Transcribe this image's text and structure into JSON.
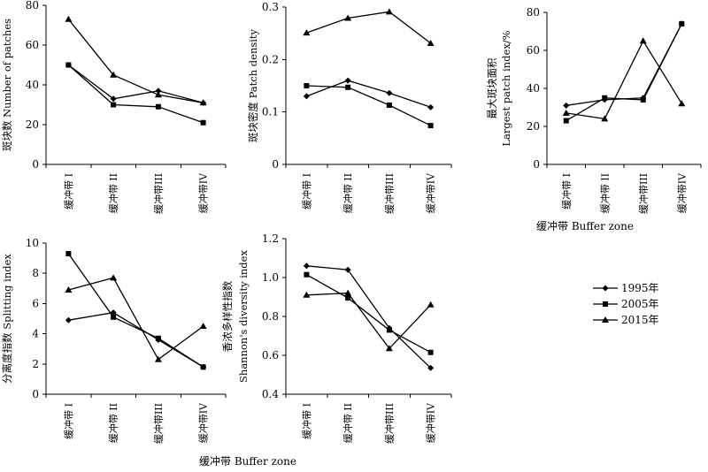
{
  "legend": [
    {
      "label": "1995年",
      "marker": "diamond"
    },
    {
      "label": "2005年",
      "marker": "square"
    },
    {
      "label": "2015年",
      "marker": "triangle"
    }
  ],
  "xlabels": {
    "top": "缓冲带 Buffer zone",
    "bottom": "缓冲带 Buffer zone"
  },
  "chart_data": [
    {
      "type": "line",
      "ylabel_zh": "斑块数",
      "ylabel_en": "Number of patches",
      "categories": [
        "缓冲带 I",
        "缓冲带 II",
        "缓冲带III",
        "缓冲带IV"
      ],
      "ylim": [
        0,
        80
      ],
      "yticks": [
        "0",
        "20",
        "40",
        "60",
        "80"
      ],
      "tickvalues": [
        0,
        20,
        40,
        60,
        80
      ],
      "series": [
        {
          "name": "1995年",
          "values": [
            50,
            33,
            37,
            31
          ]
        },
        {
          "name": "2005年",
          "values": [
            50,
            30,
            29,
            21
          ]
        },
        {
          "name": "2015年",
          "values": [
            73,
            45,
            35,
            31
          ]
        }
      ]
    },
    {
      "type": "line",
      "ylabel_zh": "斑块密度",
      "ylabel_en": "Patch density",
      "categories": [
        "缓冲带 I",
        "缓冲带 II",
        "缓冲带III",
        "缓冲带IV"
      ],
      "ylim": [
        0,
        0.3
      ],
      "yticks": [
        "0",
        "0.1",
        "0.2",
        "0.3"
      ],
      "tickvalues": [
        0,
        0.1,
        0.2,
        0.3
      ],
      "series": [
        {
          "name": "1995年",
          "values": [
            0.13,
            0.16,
            0.136,
            0.109
          ]
        },
        {
          "name": "2005年",
          "values": [
            0.15,
            0.147,
            0.113,
            0.074
          ]
        },
        {
          "name": "2015年",
          "values": [
            0.251,
            0.279,
            0.291,
            0.231
          ]
        }
      ]
    },
    {
      "type": "line",
      "ylabel_zh": "最大斑块面积",
      "ylabel_en": "Largest patch index/%",
      "categories": [
        "缓冲带 I",
        "缓冲带 II",
        "缓冲带III",
        "缓冲带IV"
      ],
      "ylim": [
        0,
        80
      ],
      "yticks": [
        "0",
        "20",
        "40",
        "60",
        "80"
      ],
      "tickvalues": [
        0,
        20,
        40,
        60,
        80
      ],
      "series": [
        {
          "name": "1995年",
          "values": [
            31,
            34,
            35,
            74
          ]
        },
        {
          "name": "2005年",
          "values": [
            23,
            35,
            34,
            74
          ]
        },
        {
          "name": "2015年",
          "values": [
            27,
            24,
            65,
            32
          ]
        }
      ]
    },
    {
      "type": "line",
      "ylabel_zh": "分离度指数",
      "ylabel_en": "Splitting index",
      "categories": [
        "缓冲带 I",
        "缓冲带 II",
        "缓冲带III",
        "缓冲带IV"
      ],
      "ylim": [
        0,
        10
      ],
      "yticks": [
        "0",
        "2",
        "4",
        "6",
        "8",
        "10"
      ],
      "tickvalues": [
        0,
        2,
        4,
        6,
        8,
        10
      ],
      "series": [
        {
          "name": "1995年",
          "values": [
            4.9,
            5.4,
            3.6,
            1.8
          ]
        },
        {
          "name": "2005年",
          "values": [
            9.3,
            5.1,
            3.7,
            1.8
          ]
        },
        {
          "name": "2015年",
          "values": [
            6.9,
            7.7,
            2.3,
            4.5
          ]
        }
      ]
    },
    {
      "type": "line",
      "ylabel_zh": "香浓多样性指数",
      "ylabel_en": "Shannon's diversity index",
      "categories": [
        "缓冲带 I",
        "缓冲带 II",
        "缓冲带III",
        "缓冲带IV"
      ],
      "ylim": [
        0.4,
        1.2
      ],
      "yticks": [
        "0.4",
        "0.6",
        "0.8",
        "1.0",
        "1.2"
      ],
      "tickvalues": [
        0.4,
        0.6,
        0.8,
        1.0,
        1.2
      ],
      "series": [
        {
          "name": "1995年",
          "values": [
            1.06,
            1.04,
            0.74,
            0.535
          ]
        },
        {
          "name": "2005年",
          "values": [
            1.015,
            0.895,
            0.73,
            0.615
          ]
        },
        {
          "name": "2015年",
          "values": [
            0.91,
            0.92,
            0.635,
            0.86
          ]
        }
      ]
    }
  ]
}
